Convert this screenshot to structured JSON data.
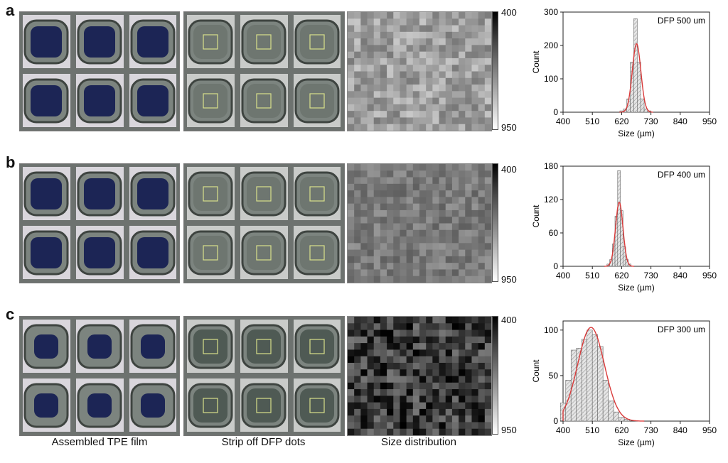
{
  "panels": [
    {
      "letter": "a",
      "label": "DFP 500 um",
      "count_ticks": [
        "0",
        "100",
        "200",
        "300"
      ],
      "ymax": 300,
      "photo_tone": "#6e7670",
      "series": {
        "bins": [
          {
            "x": 620,
            "y": 4
          },
          {
            "x": 633,
            "y": 10
          },
          {
            "x": 646,
            "y": 40
          },
          {
            "x": 659,
            "y": 150
          },
          {
            "x": 672,
            "y": 280
          },
          {
            "x": 685,
            "y": 150
          },
          {
            "x": 698,
            "y": 40
          },
          {
            "x": 711,
            "y": 10
          },
          {
            "x": 724,
            "y": 4
          }
        ],
        "fit": {
          "mu": 676,
          "sigma": 16,
          "amp": 205
        }
      }
    },
    {
      "letter": "b",
      "label": "DFP 400 um",
      "count_ticks": [
        "0",
        "60",
        "120",
        "180"
      ],
      "ymax": 180,
      "photo_tone": "#6e7670",
      "series": {
        "bins": [
          {
            "x": 570,
            "y": 4
          },
          {
            "x": 580,
            "y": 12
          },
          {
            "x": 590,
            "y": 40
          },
          {
            "x": 600,
            "y": 90
          },
          {
            "x": 610,
            "y": 172
          },
          {
            "x": 620,
            "y": 100
          },
          {
            "x": 630,
            "y": 35
          },
          {
            "x": 640,
            "y": 12
          },
          {
            "x": 650,
            "y": 4
          }
        ],
        "fit": {
          "mu": 611,
          "sigma": 14,
          "amp": 115
        }
      }
    },
    {
      "letter": "c",
      "label": "DFP 300 um",
      "count_ticks": [
        "0",
        "50",
        "100"
      ],
      "ymax": 110,
      "photo_tone": "#4f5a54",
      "series": {
        "bins": [
          {
            "x": 400,
            "y": 20
          },
          {
            "x": 420,
            "y": 45
          },
          {
            "x": 440,
            "y": 78
          },
          {
            "x": 460,
            "y": 80
          },
          {
            "x": 480,
            "y": 90
          },
          {
            "x": 500,
            "y": 100
          },
          {
            "x": 520,
            "y": 95
          },
          {
            "x": 540,
            "y": 82
          },
          {
            "x": 560,
            "y": 45
          },
          {
            "x": 580,
            "y": 22
          },
          {
            "x": 600,
            "y": 10
          },
          {
            "x": 620,
            "y": 4
          },
          {
            "x": 640,
            "y": 2
          }
        ],
        "fit": {
          "mu": 505,
          "sigma": 50,
          "amp": 103
        }
      }
    }
  ],
  "x_ticks": [
    "400",
    "510",
    "620",
    "730",
    "840",
    "950"
  ],
  "x_label": "Size (µm)",
  "y_label": "Count",
  "colorbar": {
    "top": "400",
    "bottom": "950"
  },
  "captions": {
    "col1": "Assembled TPE film",
    "col2": "Strip off DFP dots",
    "col3": "Size distribution"
  },
  "colors": {
    "hist_fill": "#e5e5e5",
    "fit": "#d93a3a",
    "grid": "#8a8f8c"
  }
}
